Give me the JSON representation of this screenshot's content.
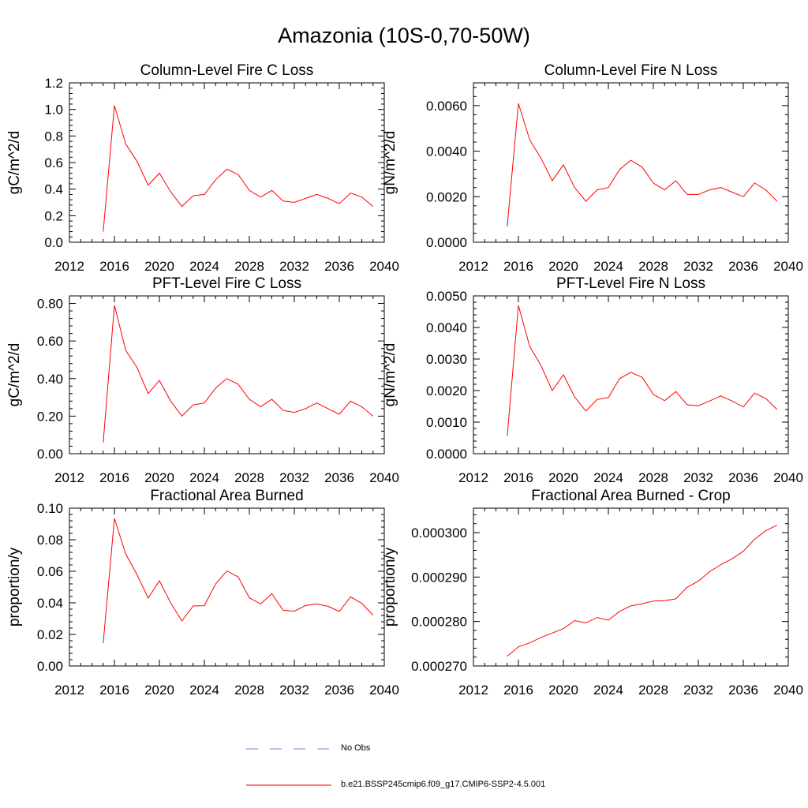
{
  "figure": {
    "title": "Amazonia (10S-0,70-50W)",
    "legend": [
      {
        "label": "No Obs",
        "color": "#7b7bbd",
        "style": "dashed"
      },
      {
        "label": "b.e21.BSSP245cmip6.f09_g17.CMIP6-SSP2-4.5.001",
        "color": "#ff0000",
        "style": "solid"
      }
    ]
  },
  "chart_data": [
    {
      "type": "line",
      "title": "Column-Level Fire C Loss",
      "xlabel": "",
      "ylabel": "gC/m^2/d",
      "xlim": [
        2012,
        2040
      ],
      "ylim": [
        0.0,
        1.2
      ],
      "xticks": [
        2012,
        2016,
        2020,
        2024,
        2028,
        2032,
        2036,
        2040
      ],
      "xticklabels": [
        "2012",
        "2016",
        "2020",
        "2024",
        "2028",
        "2032",
        "2036",
        "2040"
      ],
      "yticks": [
        0.0,
        0.2,
        0.4,
        0.6,
        0.8,
        1.0,
        1.2
      ],
      "yticklabels": [
        "0.0",
        "0.2",
        "0.4",
        "0.6",
        "0.8",
        "1.0",
        "1.2"
      ],
      "series": [
        {
          "name": "b.e21.BSSP245cmip6.f09_g17.CMIP6-SSP2-4.5.001",
          "color": "#ff0000",
          "x": [
            2015,
            2016,
            2017,
            2018,
            2019,
            2020,
            2021,
            2022,
            2023,
            2024,
            2025,
            2026,
            2027,
            2028,
            2029,
            2030,
            2031,
            2032,
            2033,
            2034,
            2035,
            2036,
            2037,
            2038,
            2039
          ],
          "values": [
            0.08,
            1.03,
            0.74,
            0.61,
            0.43,
            0.52,
            0.38,
            0.27,
            0.35,
            0.36,
            0.47,
            0.55,
            0.51,
            0.39,
            0.34,
            0.39,
            0.31,
            0.3,
            0.33,
            0.36,
            0.33,
            0.29,
            0.37,
            0.34,
            0.27
          ]
        }
      ]
    },
    {
      "type": "line",
      "title": "Column-Level Fire N Loss",
      "xlabel": "",
      "ylabel": "gN/m^2/d",
      "xlim": [
        2012,
        2040
      ],
      "ylim": [
        0.0,
        0.007
      ],
      "xticks": [
        2012,
        2016,
        2020,
        2024,
        2028,
        2032,
        2036,
        2040
      ],
      "xticklabels": [
        "2012",
        "2016",
        "2020",
        "2024",
        "2028",
        "2032",
        "2036",
        "2040"
      ],
      "yticks": [
        0.0,
        0.002,
        0.004,
        0.006
      ],
      "yticklabels": [
        "0.0000",
        "0.0020",
        "0.0040",
        "0.0060"
      ],
      "series": [
        {
          "name": "b.e21.BSSP245cmip6.f09_g17.CMIP6-SSP2-4.5.001",
          "color": "#ff0000",
          "x": [
            2015,
            2016,
            2017,
            2018,
            2019,
            2020,
            2021,
            2022,
            2023,
            2024,
            2025,
            2026,
            2027,
            2028,
            2029,
            2030,
            2031,
            2032,
            2033,
            2034,
            2035,
            2036,
            2037,
            2038,
            2039
          ],
          "values": [
            0.0007,
            0.0061,
            0.0045,
            0.0037,
            0.0027,
            0.0034,
            0.0024,
            0.0018,
            0.0023,
            0.0024,
            0.0032,
            0.0036,
            0.0033,
            0.0026,
            0.0023,
            0.0027,
            0.0021,
            0.0021,
            0.0023,
            0.0024,
            0.0022,
            0.002,
            0.0026,
            0.0023,
            0.0018
          ]
        }
      ]
    },
    {
      "type": "line",
      "title": "PFT-Level Fire C Loss",
      "xlabel": "",
      "ylabel": "gC/m^2/d",
      "xlim": [
        2012,
        2040
      ],
      "ylim": [
        0.0,
        0.84
      ],
      "xticks": [
        2012,
        2016,
        2020,
        2024,
        2028,
        2032,
        2036,
        2040
      ],
      "xticklabels": [
        "2012",
        "2016",
        "2020",
        "2024",
        "2028",
        "2032",
        "2036",
        "2040"
      ],
      "yticks": [
        0.0,
        0.2,
        0.4,
        0.6,
        0.8
      ],
      "yticklabels": [
        "0.00",
        "0.20",
        "0.40",
        "0.60",
        "0.80"
      ],
      "series": [
        {
          "name": "b.e21.BSSP245cmip6.f09_g17.CMIP6-SSP2-4.5.001",
          "color": "#ff0000",
          "x": [
            2015,
            2016,
            2017,
            2018,
            2019,
            2020,
            2021,
            2022,
            2023,
            2024,
            2025,
            2026,
            2027,
            2028,
            2029,
            2030,
            2031,
            2032,
            2033,
            2034,
            2035,
            2036,
            2037,
            2038,
            2039
          ],
          "values": [
            0.06,
            0.79,
            0.55,
            0.46,
            0.32,
            0.39,
            0.28,
            0.2,
            0.26,
            0.27,
            0.35,
            0.4,
            0.37,
            0.29,
            0.25,
            0.29,
            0.23,
            0.22,
            0.24,
            0.27,
            0.24,
            0.21,
            0.28,
            0.25,
            0.2
          ]
        }
      ]
    },
    {
      "type": "line",
      "title": "PFT-Level Fire N Loss",
      "xlabel": "",
      "ylabel": "gN/m^2/d",
      "xlim": [
        2012,
        2040
      ],
      "ylim": [
        0.0,
        0.005
      ],
      "xticks": [
        2012,
        2016,
        2020,
        2024,
        2028,
        2032,
        2036,
        2040
      ],
      "xticklabels": [
        "2012",
        "2016",
        "2020",
        "2024",
        "2028",
        "2032",
        "2036",
        "2040"
      ],
      "yticks": [
        0.0,
        0.001,
        0.002,
        0.003,
        0.004,
        0.005
      ],
      "yticklabels": [
        "0.0000",
        "0.0010",
        "0.0020",
        "0.0030",
        "0.0040",
        "0.0050"
      ],
      "series": [
        {
          "name": "b.e21.BSSP245cmip6.f09_g17.CMIP6-SSP2-4.5.001",
          "color": "#ff0000",
          "x": [
            2015,
            2016,
            2017,
            2018,
            2019,
            2020,
            2021,
            2022,
            2023,
            2024,
            2025,
            2026,
            2027,
            2028,
            2029,
            2030,
            2031,
            2032,
            2033,
            2034,
            2035,
            2036,
            2037,
            2038,
            2039
          ],
          "values": [
            0.00055,
            0.0047,
            0.0034,
            0.0028,
            0.002,
            0.0025,
            0.0018,
            0.00135,
            0.00172,
            0.00178,
            0.00238,
            0.00258,
            0.00242,
            0.00188,
            0.00168,
            0.00197,
            0.00155,
            0.00152,
            0.00167,
            0.00183,
            0.00167,
            0.00148,
            0.00192,
            0.00175,
            0.0014
          ]
        }
      ]
    },
    {
      "type": "line",
      "title": "Fractional Area Burned",
      "xlabel": "",
      "ylabel": "proportion/y",
      "xlim": [
        2012,
        2040
      ],
      "ylim": [
        0.0,
        0.1
      ],
      "xticks": [
        2012,
        2016,
        2020,
        2024,
        2028,
        2032,
        2036,
        2040
      ],
      "xticklabels": [
        "2012",
        "2016",
        "2020",
        "2024",
        "2028",
        "2032",
        "2036",
        "2040"
      ],
      "yticks": [
        0.0,
        0.02,
        0.04,
        0.06,
        0.08,
        0.1
      ],
      "yticklabels": [
        "0.00",
        "0.02",
        "0.04",
        "0.06",
        "0.08",
        "0.10"
      ],
      "series": [
        {
          "name": "b.e21.BSSP245cmip6.f09_g17.CMIP6-SSP2-4.5.001",
          "color": "#ff0000",
          "x": [
            2015,
            2016,
            2017,
            2018,
            2019,
            2020,
            2021,
            2022,
            2023,
            2024,
            2025,
            2026,
            2027,
            2028,
            2029,
            2030,
            2031,
            2032,
            2033,
            2034,
            2035,
            2036,
            2037,
            2038,
            2039
          ],
          "values": [
            0.0145,
            0.0935,
            0.071,
            0.058,
            0.043,
            0.054,
            0.04,
            0.0285,
            0.038,
            0.0382,
            0.052,
            0.0602,
            0.0565,
            0.0432,
            0.0393,
            0.0458,
            0.0353,
            0.0347,
            0.0383,
            0.0393,
            0.0378,
            0.0345,
            0.0438,
            0.0397,
            0.0322
          ]
        }
      ]
    },
    {
      "type": "line",
      "title": "Fractional Area Burned - Crop",
      "xlabel": "",
      "ylabel": "proportion/y",
      "xlim": [
        2012,
        2040
      ],
      "ylim": [
        0.00027,
        0.0003055
      ],
      "xticks": [
        2012,
        2016,
        2020,
        2024,
        2028,
        2032,
        2036,
        2040
      ],
      "xticklabels": [
        "2012",
        "2016",
        "2020",
        "2024",
        "2028",
        "2032",
        "2036",
        "2040"
      ],
      "yticks": [
        0.00027,
        0.00028,
        0.00029,
        0.0003
      ],
      "yticklabels": [
        "0.000270",
        "0.000280",
        "0.000290",
        "0.000300"
      ],
      "series": [
        {
          "name": "b.e21.BSSP245cmip6.f09_g17.CMIP6-SSP2-4.5.001",
          "color": "#ff0000",
          "x": [
            2015,
            2016,
            2017,
            2018,
            2019,
            2020,
            2021,
            2022,
            2023,
            2024,
            2025,
            2026,
            2027,
            2028,
            2029,
            2030,
            2031,
            2032,
            2033,
            2034,
            2035,
            2036,
            2037,
            2038,
            2039
          ],
          "values": [
            0.0002722,
            0.0002743,
            0.0002752,
            0.0002764,
            0.0002774,
            0.0002784,
            0.0002802,
            0.0002797,
            0.0002809,
            0.0002803,
            0.0002823,
            0.0002835,
            0.000284,
            0.0002846,
            0.0002847,
            0.0002851,
            0.0002877,
            0.0002891,
            0.0002912,
            0.0002928,
            0.0002941,
            0.0002958,
            0.0002985,
            0.0003004,
            0.0003017
          ]
        }
      ]
    }
  ]
}
